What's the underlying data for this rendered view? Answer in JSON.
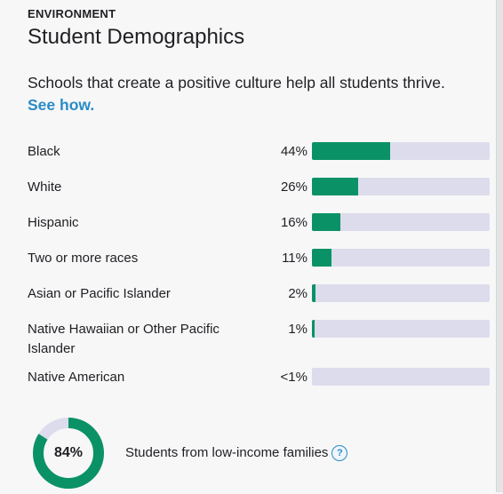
{
  "section": {
    "eyebrow": "ENVIRONMENT",
    "title": "Student Demographics",
    "intro": "Schools that create a positive culture help all students thrive.",
    "link": "See how."
  },
  "demographics": [
    {
      "label": "Black",
      "percent_text": "44%",
      "value": 44
    },
    {
      "label": "White",
      "percent_text": "26%",
      "value": 26
    },
    {
      "label": "Hispanic",
      "percent_text": "16%",
      "value": 16
    },
    {
      "label": "Two or more races",
      "percent_text": "11%",
      "value": 11
    },
    {
      "label": "Asian or Pacific Islander",
      "percent_text": "2%",
      "value": 2
    },
    {
      "label": "Native Hawaiian or Other Pacific Islander",
      "percent_text": "1%",
      "value": 1
    },
    {
      "label": "Native American",
      "percent_text": "<1%",
      "value": 0
    }
  ],
  "low_income": {
    "percent_text": "84%",
    "value": 84,
    "label": "Students from low-income families",
    "help_icon": "question-circle-icon"
  },
  "colors": {
    "bar_fill": "#0a9266",
    "bar_track": "#dcdcec",
    "link": "#2b8bc6"
  }
}
